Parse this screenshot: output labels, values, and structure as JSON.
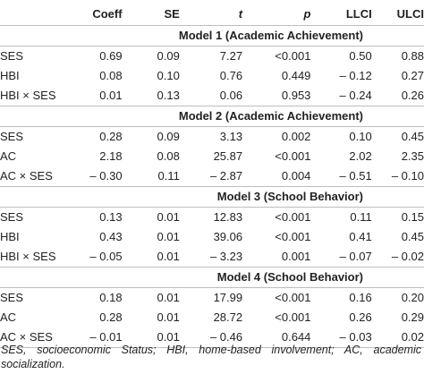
{
  "headers": {
    "coeff": "Coeff",
    "se": "SE",
    "t": "t",
    "p": "p",
    "llci": "LLCI",
    "ulci": "ULCI"
  },
  "models": [
    {
      "title": "Model 1 (Academic Achievement)",
      "rows": [
        {
          "label": "SES",
          "coeff": "0.69",
          "se": "0.09",
          "t": "7.27",
          "p": "<0.001",
          "llci": "0.50",
          "ulci": "0.88"
        },
        {
          "label": "HBI",
          "coeff": "0.08",
          "se": "0.10",
          "t": "0.76",
          "p": "0.449",
          "llci": "– 0.12",
          "ulci": "0.27"
        },
        {
          "label": "HBI × SES",
          "coeff": "0.01",
          "se": "0.13",
          "t": "0.06",
          "p": "0.953",
          "llci": "– 0.24",
          "ulci": "0.26"
        }
      ]
    },
    {
      "title": "Model 2 (Academic Achievement)",
      "rows": [
        {
          "label": "SES",
          "coeff": "0.28",
          "se": "0.09",
          "t": "3.13",
          "p": "0.002",
          "llci": "0.10",
          "ulci": "0.45"
        },
        {
          "label": "AC",
          "coeff": "2.18",
          "se": "0.08",
          "t": "25.87",
          "p": "<0.001",
          "llci": "2.02",
          "ulci": "2.35"
        },
        {
          "label": "AC × SES",
          "coeff": "– 0.30",
          "se": "0.11",
          "t": "– 2.87",
          "p": "0.004",
          "llci": "– 0.51",
          "ulci": "– 0.10"
        }
      ]
    },
    {
      "title": "Model 3 (School Behavior)",
      "rows": [
        {
          "label": "SES",
          "coeff": "0.13",
          "se": "0.01",
          "t": "12.83",
          "p": "<0.001",
          "llci": "0.11",
          "ulci": "0.15"
        },
        {
          "label": "HBI",
          "coeff": "0.43",
          "se": "0.01",
          "t": "39.06",
          "p": "<0.001",
          "llci": "0.41",
          "ulci": "0.45"
        },
        {
          "label": "HBI × SES",
          "coeff": "– 0.05",
          "se": "0.01",
          "t": "– 3.23",
          "p": "0.001",
          "llci": "– 0.07",
          "ulci": "– 0.02"
        }
      ]
    },
    {
      "title": "Model 4 (School Behavior)",
      "rows": [
        {
          "label": "SES",
          "coeff": "0.18",
          "se": "0.01",
          "t": "17.99",
          "p": "<0.001",
          "llci": "0.16",
          "ulci": "0.20"
        },
        {
          "label": "AC",
          "coeff": "0.28",
          "se": "0.01",
          "t": "28.72",
          "p": "<0.001",
          "llci": "0.26",
          "ulci": "0.29"
        },
        {
          "label": "AC × SES",
          "coeff": "– 0.01",
          "se": "0.01",
          "t": "– 0.46",
          "p": "0.644",
          "llci": "– 0.03",
          "ulci": "0.02"
        }
      ]
    }
  ],
  "footnote": "SES, socioeconomic Status; HBI, home-based involvement; AC, academic socialization."
}
